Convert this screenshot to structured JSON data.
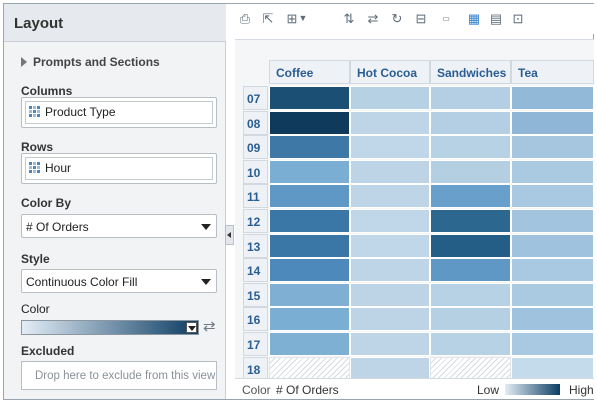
{
  "panel": {
    "title": "Layout",
    "prompts_label": "Prompts and Sections",
    "columns_label": "Columns",
    "columns_value": "Product Type",
    "rows_label": "Rows",
    "rows_value": "Hour",
    "color_by_label": "Color By",
    "color_by_value": "# Of Orders",
    "style_label": "Style",
    "style_value": "Continuous Color Fill",
    "color_label": "Color",
    "excluded_label": "Excluded",
    "excluded_placeholder": "Drop here to exclude from this view"
  },
  "toolbar_icons": [
    "print-icon",
    "export-icon",
    "view-options-icon",
    "dropdown-arrow-icon",
    "sort-icon",
    "swap-axis-icon",
    "refresh-icon",
    "pivot-icon",
    "xyz-label-icon",
    "heat-matrix-icon",
    "table-view-icon",
    "chart-view-icon"
  ],
  "colors": {
    "low": "#e3edf6",
    "high": "#0c3d63",
    "header_text": "#2a5d93"
  },
  "columns": [
    "Coffee",
    "Hot Cocoa",
    "Sandwiches",
    "Tea"
  ],
  "rows": [
    "07",
    "08",
    "09",
    "10",
    "11",
    "12",
    "13",
    "14",
    "15",
    "16",
    "17",
    "18"
  ],
  "cells": [
    [
      "#1b4f74",
      "#b7d1e4",
      "#b4cfe3",
      "#93b9d9"
    ],
    [
      "#0f3a5b",
      "#bdd5e7",
      "#b4cfe3",
      "#8fb6d7"
    ],
    [
      "#3d78a6",
      "#bfd7e8",
      "#b8d2e5",
      "#a6c6e0"
    ],
    [
      "#7aaed2",
      "#bcd4e6",
      "#b4cfe2",
      "#aacae2"
    ],
    [
      "#5f98c4",
      "#bdd5e7",
      "#69a0cb",
      "#a9c9e2"
    ],
    [
      "#3a76a6",
      "#bfd7e8",
      "#2c6790",
      "#a2c4df"
    ],
    [
      "#3a76a6",
      "#bfd7e8",
      "#245d86",
      "#9fc2de"
    ],
    [
      "#4d8abb",
      "#bdd5e7",
      "#5f98c4",
      "#a9c9e2"
    ],
    [
      "#7fb0d4",
      "#bcd4e6",
      "#b8d2e5",
      "#aacae2"
    ],
    [
      "#7aaed2",
      "#bcd4e6",
      "#b5d0e3",
      "#9fc2de"
    ],
    [
      "#7eb0d4",
      "#bdd5e7",
      "#b8d2e5",
      "#a9c9e2"
    ],
    [
      null,
      "#bdd5e7",
      null,
      "#c4dbec"
    ]
  ],
  "legend": {
    "color_label": "Color",
    "measure": "# Of Orders",
    "low": "Low",
    "high": "High"
  }
}
